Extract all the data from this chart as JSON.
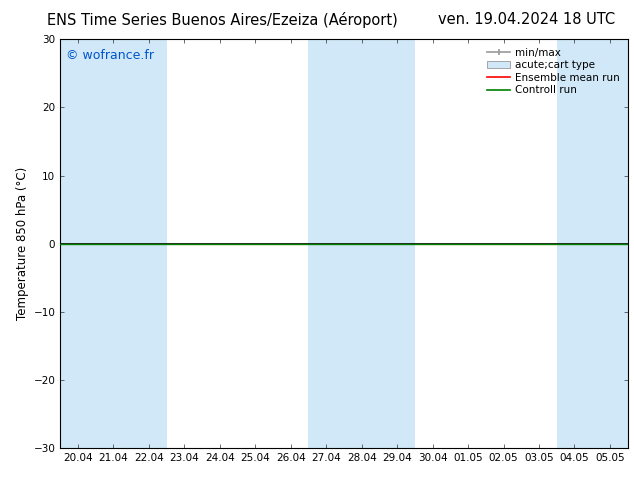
{
  "title_left": "ENS Time Series Buenos Aires/Ezeiza (Aéroport)",
  "title_right": "ven. 19.04.2024 18 UTC",
  "ylabel": "Temperature 850 hPa (°C)",
  "watermark": "© wofrance.fr",
  "ylim": [
    -30,
    30
  ],
  "yticks": [
    -30,
    -20,
    -10,
    0,
    10,
    20,
    30
  ],
  "xtick_labels": [
    "20.04",
    "21.04",
    "22.04",
    "23.04",
    "24.04",
    "25.04",
    "26.04",
    "27.04",
    "28.04",
    "29.04",
    "30.04",
    "01.05",
    "02.05",
    "03.05",
    "04.05",
    "05.05"
  ],
  "num_xticks": 16,
  "fig_bg_color": "#ffffff",
  "plot_bg_color": "#ffffff",
  "shaded_columns": [
    0,
    1,
    2,
    7,
    8,
    9,
    14,
    15
  ],
  "shaded_color": "#d0e8f8",
  "zero_line_color": "#000000",
  "green_line_color": "#008000",
  "red_line_color": "#ff0000",
  "border_color": "#000000",
  "title_fontsize": 10.5,
  "tick_fontsize": 7.5,
  "ylabel_fontsize": 8.5,
  "watermark_color": "#0055cc",
  "watermark_fontsize": 9,
  "legend_fontsize": 7.5
}
